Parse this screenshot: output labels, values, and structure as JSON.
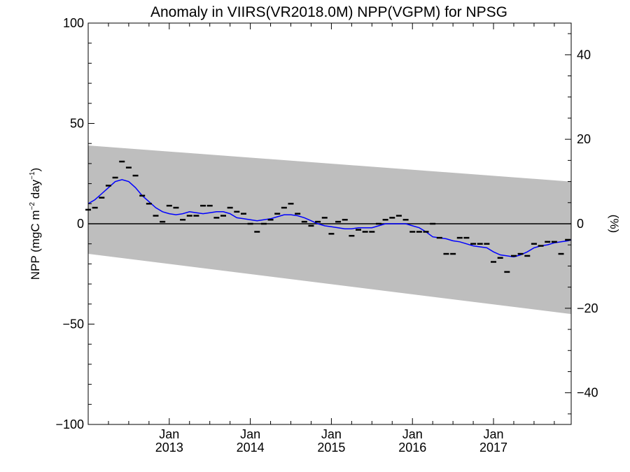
{
  "chart_data": {
    "type": "line",
    "title": "Anomaly in VIIRS(VR2018.0M) NPP(VGPM) for NPSG",
    "ylabel_main": "NPP (mgC m",
    "ylabel_sup1": "−2",
    "ylabel_mid": " day",
    "ylabel_sup2": "−1",
    "ylabel_end": ")",
    "y2label": "(%)",
    "xlim": [
      2012.0,
      2017.9583
    ],
    "ylim": [
      -100,
      100
    ],
    "y2lim": [
      -47.5,
      47.5
    ],
    "yticks": [
      {
        "value": -100,
        "label": "−100"
      },
      {
        "value": -50,
        "label": "−50"
      },
      {
        "value": 0,
        "label": "0"
      },
      {
        "value": 50,
        "label": "50"
      },
      {
        "value": 100,
        "label": "100"
      }
    ],
    "y2ticks": [
      {
        "value": -40,
        "label": "−40"
      },
      {
        "value": -20,
        "label": "−20"
      },
      {
        "value": 0,
        "label": "0"
      },
      {
        "value": 20,
        "label": "20"
      },
      {
        "value": 40,
        "label": "40"
      }
    ],
    "xticks": [
      {
        "value": 2013.0,
        "month": "Jan",
        "year": "2013"
      },
      {
        "value": 2014.0,
        "month": "Jan",
        "year": "2014"
      },
      {
        "value": 2015.0,
        "month": "Jan",
        "year": "2015"
      },
      {
        "value": 2016.0,
        "month": "Jan",
        "year": "2016"
      },
      {
        "value": 2017.0,
        "month": "Jan",
        "year": "2017"
      }
    ],
    "envelope": {
      "upper": [
        [
          2012.0,
          39
        ],
        [
          2017.9583,
          21
        ]
      ],
      "lower": [
        [
          2012.0,
          -15
        ],
        [
          2017.9583,
          -45
        ]
      ],
      "color": "#bebebe"
    },
    "zero_line_color": "#000000",
    "monthly_anomaly": [
      {
        "x": 2012.0,
        "y": 7
      },
      {
        "x": 2012.0833,
        "y": 8
      },
      {
        "x": 2012.1667,
        "y": 13
      },
      {
        "x": 2012.25,
        "y": 19
      },
      {
        "x": 2012.3333,
        "y": 23
      },
      {
        "x": 2012.4167,
        "y": 31
      },
      {
        "x": 2012.5,
        "y": 28
      },
      {
        "x": 2012.5833,
        "y": 24
      },
      {
        "x": 2012.6667,
        "y": 14
      },
      {
        "x": 2012.75,
        "y": 10
      },
      {
        "x": 2012.8333,
        "y": 4
      },
      {
        "x": 2012.9167,
        "y": 1
      },
      {
        "x": 2013.0,
        "y": 9
      },
      {
        "x": 2013.0833,
        "y": 8
      },
      {
        "x": 2013.1667,
        "y": 2
      },
      {
        "x": 2013.25,
        "y": 4
      },
      {
        "x": 2013.3333,
        "y": 4
      },
      {
        "x": 2013.4167,
        "y": 9
      },
      {
        "x": 2013.5,
        "y": 9
      },
      {
        "x": 2013.5833,
        "y": 3
      },
      {
        "x": 2013.6667,
        "y": 4
      },
      {
        "x": 2013.75,
        "y": 8
      },
      {
        "x": 2013.8333,
        "y": 6
      },
      {
        "x": 2013.9167,
        "y": 5
      },
      {
        "x": 2014.0,
        "y": 0
      },
      {
        "x": 2014.0833,
        "y": -4
      },
      {
        "x": 2014.1667,
        "y": 0
      },
      {
        "x": 2014.25,
        "y": 2
      },
      {
        "x": 2014.3333,
        "y": 5
      },
      {
        "x": 2014.4167,
        "y": 8
      },
      {
        "x": 2014.5,
        "y": 10
      },
      {
        "x": 2014.5833,
        "y": 5
      },
      {
        "x": 2014.6667,
        "y": 1
      },
      {
        "x": 2014.75,
        "y": -1
      },
      {
        "x": 2014.8333,
        "y": 1
      },
      {
        "x": 2014.9167,
        "y": 3
      },
      {
        "x": 2015.0,
        "y": -5
      },
      {
        "x": 2015.0833,
        "y": 1
      },
      {
        "x": 2015.1667,
        "y": 2
      },
      {
        "x": 2015.25,
        "y": -6
      },
      {
        "x": 2015.3333,
        "y": -3
      },
      {
        "x": 2015.4167,
        "y": -4
      },
      {
        "x": 2015.5,
        "y": -4
      },
      {
        "x": 2015.5833,
        "y": 0
      },
      {
        "x": 2015.6667,
        "y": 2
      },
      {
        "x": 2015.75,
        "y": 3
      },
      {
        "x": 2015.8333,
        "y": 4
      },
      {
        "x": 2015.9167,
        "y": 2
      },
      {
        "x": 2016.0,
        "y": -4
      },
      {
        "x": 2016.0833,
        "y": -4
      },
      {
        "x": 2016.1667,
        "y": -4
      },
      {
        "x": 2016.25,
        "y": 0
      },
      {
        "x": 2016.3333,
        "y": -7
      },
      {
        "x": 2016.4167,
        "y": -15
      },
      {
        "x": 2016.5,
        "y": -15
      },
      {
        "x": 2016.5833,
        "y": -7
      },
      {
        "x": 2016.6667,
        "y": -7
      },
      {
        "x": 2016.75,
        "y": -10
      },
      {
        "x": 2016.8333,
        "y": -10
      },
      {
        "x": 2016.9167,
        "y": -10
      },
      {
        "x": 2017.0,
        "y": -19
      },
      {
        "x": 2017.0833,
        "y": -17
      },
      {
        "x": 2017.1667,
        "y": -24
      },
      {
        "x": 2017.25,
        "y": -16
      },
      {
        "x": 2017.3333,
        "y": -15
      },
      {
        "x": 2017.4167,
        "y": -16
      },
      {
        "x": 2017.5,
        "y": -10
      },
      {
        "x": 2017.5833,
        "y": -11
      },
      {
        "x": 2017.6667,
        "y": -9
      },
      {
        "x": 2017.75,
        "y": -9
      },
      {
        "x": 2017.8333,
        "y": -15
      },
      {
        "x": 2017.9167,
        "y": -8
      }
    ],
    "smoothed": {
      "color": "#0000ff",
      "points": [
        [
          2012.0,
          10
        ],
        [
          2012.0833,
          12
        ],
        [
          2012.1667,
          15
        ],
        [
          2012.25,
          18
        ],
        [
          2012.3333,
          21
        ],
        [
          2012.4167,
          22
        ],
        [
          2012.5,
          21
        ],
        [
          2012.5833,
          18
        ],
        [
          2012.6667,
          14
        ],
        [
          2012.75,
          11
        ],
        [
          2012.8333,
          8
        ],
        [
          2012.9167,
          6
        ],
        [
          2013.0,
          5
        ],
        [
          2013.0833,
          4.5
        ],
        [
          2013.1667,
          5
        ],
        [
          2013.25,
          6
        ],
        [
          2013.3333,
          5.5
        ],
        [
          2013.4167,
          5
        ],
        [
          2013.5,
          5.5
        ],
        [
          2013.5833,
          6
        ],
        [
          2013.6667,
          6
        ],
        [
          2013.75,
          5
        ],
        [
          2013.8333,
          3
        ],
        [
          2013.9167,
          2.5
        ],
        [
          2014.0,
          2
        ],
        [
          2014.0833,
          1.5
        ],
        [
          2014.1667,
          2
        ],
        [
          2014.25,
          2.5
        ],
        [
          2014.3333,
          3.5
        ],
        [
          2014.4167,
          4.5
        ],
        [
          2014.5,
          4.5
        ],
        [
          2014.5833,
          4
        ],
        [
          2014.6667,
          3
        ],
        [
          2014.75,
          1.5
        ],
        [
          2014.8333,
          0
        ],
        [
          2014.9167,
          -1
        ],
        [
          2015.0,
          -1.5
        ],
        [
          2015.0833,
          -2
        ],
        [
          2015.1667,
          -2.5
        ],
        [
          2015.25,
          -2.5
        ],
        [
          2015.3333,
          -2
        ],
        [
          2015.4167,
          -2
        ],
        [
          2015.5,
          -2
        ],
        [
          2015.5833,
          -1
        ],
        [
          2015.6667,
          0
        ],
        [
          2015.75,
          0
        ],
        [
          2015.8333,
          0
        ],
        [
          2015.9167,
          0
        ],
        [
          2016.0,
          -1
        ],
        [
          2016.0833,
          -2
        ],
        [
          2016.1667,
          -4
        ],
        [
          2016.25,
          -6.5
        ],
        [
          2016.3333,
          -7
        ],
        [
          2016.4167,
          -7.5
        ],
        [
          2016.5,
          -8.5
        ],
        [
          2016.5833,
          -9
        ],
        [
          2016.6667,
          -10
        ],
        [
          2016.75,
          -11
        ],
        [
          2016.8333,
          -11.5
        ],
        [
          2016.9167,
          -12
        ],
        [
          2017.0,
          -14
        ],
        [
          2017.0833,
          -15.5
        ],
        [
          2017.1667,
          -16
        ],
        [
          2017.25,
          -16.5
        ],
        [
          2017.3333,
          -15.5
        ],
        [
          2017.4167,
          -14
        ],
        [
          2017.5,
          -12
        ],
        [
          2017.5833,
          -11
        ],
        [
          2017.6667,
          -10.5
        ],
        [
          2017.75,
          -9.5
        ],
        [
          2017.8333,
          -9
        ],
        [
          2017.9167,
          -8.5
        ],
        [
          2017.9583,
          -8
        ]
      ]
    }
  }
}
